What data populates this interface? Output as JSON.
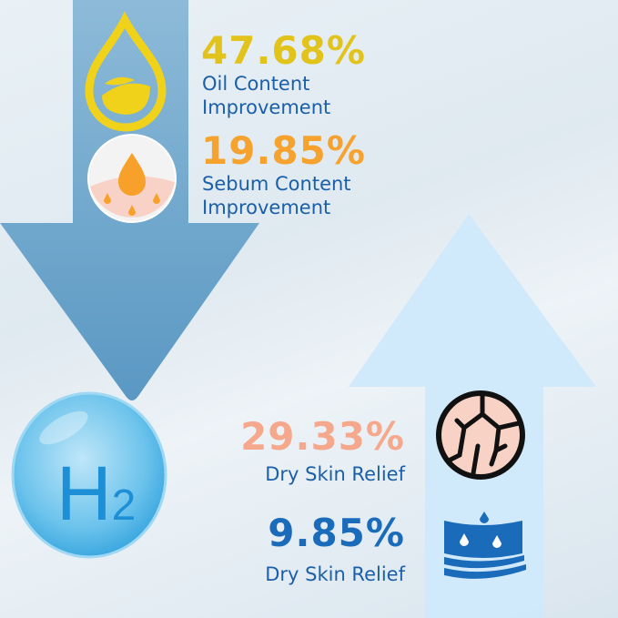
{
  "stats": [
    {
      "value": "47.68%",
      "label_line1": "Oil Content",
      "label_line2": "Improvement",
      "color": "#e2c31c",
      "icon": "oil-drop-icon"
    },
    {
      "value": "19.85%",
      "label_line1": "Sebum Content",
      "label_line2": "Improvement",
      "color": "#f6a22f",
      "icon": "sebum-skin-icon"
    },
    {
      "value": "29.33%",
      "label": "Dry Skin Relief",
      "color": "#f5a88c",
      "icon": "cracked-skin-icon"
    },
    {
      "value": "9.85%",
      "label": "Dry Skin Relief",
      "color": "#1b6bbb",
      "icon": "skin-hydration-icon"
    }
  ],
  "bubble": {
    "symbol": "H",
    "subscript": "2"
  },
  "colors": {
    "down_arrow": "#5e9dc6",
    "up_arrow": "#cfe9fb",
    "label_text": "#1a5fa8"
  }
}
